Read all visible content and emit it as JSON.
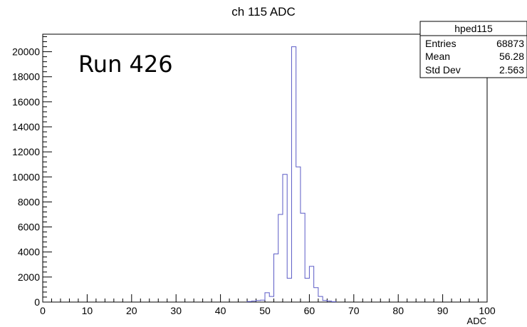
{
  "chart_data": {
    "type": "histogram",
    "title": "ch 115 ADC",
    "xlabel": "ADC",
    "ylabel": "",
    "annotation": "Run 426",
    "xlim": [
      0,
      100
    ],
    "ylim": [
      0,
      21400
    ],
    "bin_width": 1,
    "x_ticks": [
      0,
      10,
      20,
      30,
      40,
      50,
      60,
      70,
      80,
      90,
      100
    ],
    "y_ticks": [
      0,
      2000,
      4000,
      6000,
      8000,
      10000,
      12000,
      14000,
      16000,
      18000,
      20000
    ],
    "grid": false,
    "line_color": "#5b5bc6",
    "bins": [
      {
        "x": 46,
        "value": 40
      },
      {
        "x": 47,
        "value": 80
      },
      {
        "x": 48,
        "value": 130
      },
      {
        "x": 49,
        "value": 160
      },
      {
        "x": 50,
        "value": 750
      },
      {
        "x": 51,
        "value": 450
      },
      {
        "x": 52,
        "value": 3850
      },
      {
        "x": 53,
        "value": 7000
      },
      {
        "x": 54,
        "value": 10200
      },
      {
        "x": 55,
        "value": 1900
      },
      {
        "x": 56,
        "value": 20400
      },
      {
        "x": 57,
        "value": 10800
      },
      {
        "x": 58,
        "value": 7100
      },
      {
        "x": 59,
        "value": 1900
      },
      {
        "x": 60,
        "value": 2850
      },
      {
        "x": 61,
        "value": 1150
      },
      {
        "x": 62,
        "value": 450
      },
      {
        "x": 63,
        "value": 130
      },
      {
        "x": 64,
        "value": 80
      },
      {
        "x": 65,
        "value": 30
      }
    ],
    "stats_box": {
      "name": "hped115",
      "rows": [
        {
          "label": "Entries",
          "value": "68873"
        },
        {
          "label": "Mean",
          "value": "56.28"
        },
        {
          "label": "Std Dev",
          "value": "2.563"
        }
      ]
    }
  }
}
